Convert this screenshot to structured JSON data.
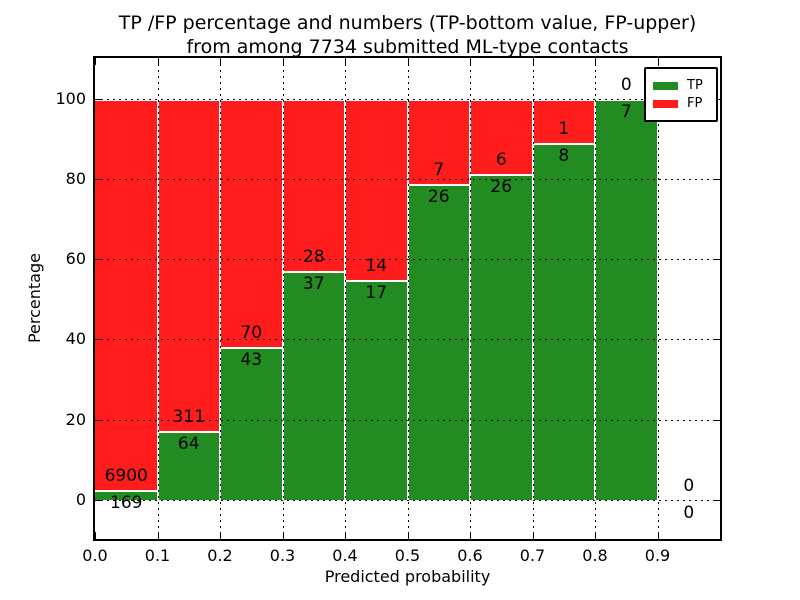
{
  "figure": {
    "title_line1": "TP /FP percentage and numbers (TP-bottom value, FP-upper)",
    "title_line2": "from among 7734 submitted ML-type contacts"
  },
  "chart_data": {
    "type": "bar",
    "stacked": true,
    "normalized_to_percent": true,
    "title": "TP /FP percentage and numbers (TP-bottom value, FP-upper) from among 7734 submitted ML-type contacts",
    "xlabel": "Predicted probability",
    "ylabel": "Percentage",
    "xlim": [
      0.0,
      1.0
    ],
    "ylim": [
      -10,
      110
    ],
    "bin_width": 0.1,
    "x_bin_starts": [
      0.0,
      0.1,
      0.2,
      0.3,
      0.4,
      0.5,
      0.6,
      0.7,
      0.8,
      0.9
    ],
    "xtick_labels": [
      "0.0",
      "0.1",
      "0.2",
      "0.3",
      "0.4",
      "0.5",
      "0.6",
      "0.7",
      "0.8",
      "0.9"
    ],
    "ytick_values": [
      0,
      20,
      40,
      60,
      80,
      100
    ],
    "grid": true,
    "annotation_note": "TP count printed below segment boundary, FP count printed above it",
    "legend": {
      "position": "upper right",
      "entries": [
        {
          "label": "TP",
          "color": "#228b22"
        },
        {
          "label": "FP",
          "color": "#ff1c1c"
        }
      ]
    },
    "series": [
      {
        "name": "TP",
        "color": "#228b22",
        "counts": [
          169,
          64,
          43,
          37,
          17,
          26,
          26,
          8,
          7,
          0
        ]
      },
      {
        "name": "FP",
        "color": "#ff1c1c",
        "counts": [
          6900,
          311,
          70,
          28,
          14,
          7,
          6,
          1,
          0,
          0
        ]
      }
    ],
    "total_submitted": 7734
  }
}
